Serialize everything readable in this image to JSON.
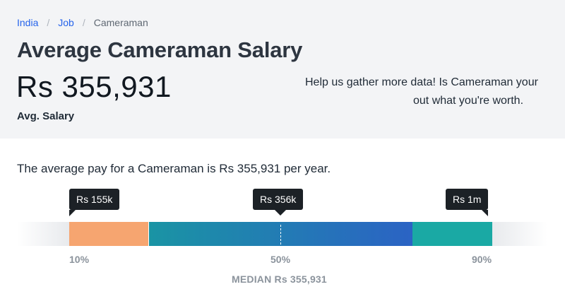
{
  "breadcrumb": {
    "items": [
      "India",
      "Job",
      "Cameraman"
    ],
    "separator": "/"
  },
  "header": {
    "title": "Average Cameraman Salary",
    "salary": "Rs 355,931",
    "salary_caption": "Avg. Salary",
    "cta_line1": "Help us gather more data! Is Cameraman your",
    "cta_line2": "out what you're worth."
  },
  "summary": "The average pay for a Cameraman is Rs 355,931 per year.",
  "pay_range": {
    "tooltips": {
      "low": "Rs 155k",
      "median": "Rs 356k",
      "high": "Rs 1m"
    },
    "percentiles": {
      "low": "10%",
      "median": "50%",
      "high": "90%"
    },
    "median_label": "MEDIAN Rs 355,931",
    "colors": {
      "low_segment": "#f6a570",
      "mid_segment_start": "#1a94a4",
      "mid_segment_end": "#2b63c4",
      "high_segment": "#1aa9a4",
      "tooltip_bg": "#1c2126"
    }
  },
  "colors": {
    "link": "#2563eb",
    "hero_bg": "#f3f4f6"
  }
}
